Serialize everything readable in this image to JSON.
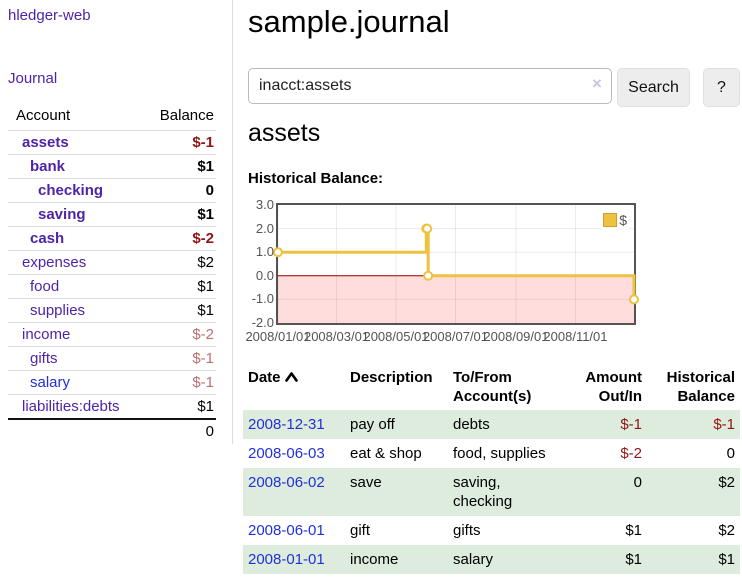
{
  "app": {
    "brand": "hledger-web",
    "nav_journal": "Journal"
  },
  "sidebar": {
    "header": {
      "account": "Account",
      "balance": "Balance"
    },
    "accounts": [
      {
        "name": "assets",
        "depth": 1,
        "balance": "$-1",
        "bold": true,
        "neg": "strong"
      },
      {
        "name": "bank",
        "depth": 2,
        "balance": "$1",
        "bold": true,
        "neg": null
      },
      {
        "name": "checking",
        "depth": 3,
        "balance": "0",
        "bold": true,
        "neg": null
      },
      {
        "name": "saving",
        "depth": 3,
        "balance": "$1",
        "bold": true,
        "neg": null
      },
      {
        "name": "cash",
        "depth": 2,
        "balance": "$-2",
        "bold": true,
        "neg": "strong"
      },
      {
        "name": "expenses",
        "depth": 1,
        "balance": "$2",
        "bold": false,
        "neg": null
      },
      {
        "name": "food",
        "depth": 2,
        "balance": "$1",
        "bold": false,
        "neg": null
      },
      {
        "name": "supplies",
        "depth": 2,
        "balance": "$1",
        "bold": false,
        "neg": null
      },
      {
        "name": "income",
        "depth": 1,
        "balance": "$-2",
        "bold": false,
        "neg": "soft"
      },
      {
        "name": "gifts",
        "depth": 2,
        "balance": "$-1",
        "bold": false,
        "neg": "soft"
      },
      {
        "name": "salary",
        "depth": 2,
        "balance": "$-1",
        "bold": false,
        "neg": "soft",
        "blue": true
      },
      {
        "name": "liabilities:debts",
        "depth": 1,
        "balance": "$1",
        "bold": false,
        "neg": null
      }
    ],
    "total": "0"
  },
  "header": {
    "title": "sample.journal"
  },
  "search": {
    "value": "inacct:assets",
    "clear_icon": "×",
    "button_label": "Search",
    "help_label": "?"
  },
  "register": {
    "heading": "assets",
    "chart_label": "Historical Balance:"
  },
  "chart_data": {
    "type": "line",
    "step": true,
    "title": "Historical Balance",
    "series": [
      {
        "name": "$",
        "color": "#edc240",
        "points": [
          {
            "date": "2008-01-01",
            "value": 1
          },
          {
            "date": "2008-06-01",
            "value": 2
          },
          {
            "date": "2008-06-02",
            "value": 2
          },
          {
            "date": "2008-06-03",
            "value": 0
          },
          {
            "date": "2008-12-31",
            "value": -1
          }
        ]
      }
    ],
    "x_range": [
      "2008-01-01",
      "2008-12-31"
    ],
    "ylim": [
      -2,
      3
    ],
    "y_ticks": [
      {
        "label": "3.0",
        "value": 3
      },
      {
        "label": "2.0",
        "value": 2
      },
      {
        "label": "1.0",
        "value": 1
      },
      {
        "label": "0.0",
        "value": 0
      },
      {
        "label": "-1.0",
        "value": -1
      },
      {
        "label": "-2.0",
        "value": -2
      }
    ],
    "x_ticks": [
      {
        "label": "2008/01/01",
        "date": "2008-01-01"
      },
      {
        "label": "2008/03/01",
        "date": "2008-03-01"
      },
      {
        "label": "2008/05/01",
        "date": "2008-05-01"
      },
      {
        "label": "2008/07/01",
        "date": "2008-07-01"
      },
      {
        "label": "2008/09/01",
        "date": "2008-09-01"
      },
      {
        "label": "2008/11/01",
        "date": "2008-11-01"
      }
    ],
    "legend_position": "top-right",
    "grid": true,
    "negative_region_color": "#ffdddd",
    "zero_line_color": "#990000",
    "grid_line_color": "rgba(0,0,0,0.08)"
  },
  "table": {
    "headers": [
      "Date",
      "Description",
      "To/From Account(s)",
      "Amount Out/In",
      "Historical Balance"
    ],
    "rows": [
      {
        "date": "2008-12-31",
        "description": "pay off",
        "accounts": "debts",
        "amount": "$-1",
        "balance": "$-1",
        "amount_neg": true,
        "balance_neg": true
      },
      {
        "date": "2008-06-03",
        "description": "eat & shop",
        "accounts": "food, supplies",
        "amount": "$-2",
        "balance": "0",
        "amount_neg": true,
        "balance_neg": false
      },
      {
        "date": "2008-06-02",
        "description": "save",
        "accounts": "saving, checking",
        "amount": "0",
        "balance": "$2",
        "amount_neg": false,
        "balance_neg": false
      },
      {
        "date": "2008-06-01",
        "description": "gift",
        "accounts": "gifts",
        "amount": "$1",
        "balance": "$2",
        "amount_neg": false,
        "balance_neg": false
      },
      {
        "date": "2008-01-01",
        "description": "income",
        "accounts": "salary",
        "amount": "$1",
        "balance": "$1",
        "amount_neg": false,
        "balance_neg": false
      }
    ]
  },
  "colors": {
    "link_purple": "#4e24a8",
    "link_blue": "#2230d8",
    "negative_strong": "#8e1616",
    "negative_soft": "#bb7070",
    "row_stripe_green": "#ddecdc",
    "chart_gold": "#edc240",
    "chart_negative_fill": "#ffdddd",
    "chart_zero_line": "#990000",
    "chart_border": "#545454"
  }
}
